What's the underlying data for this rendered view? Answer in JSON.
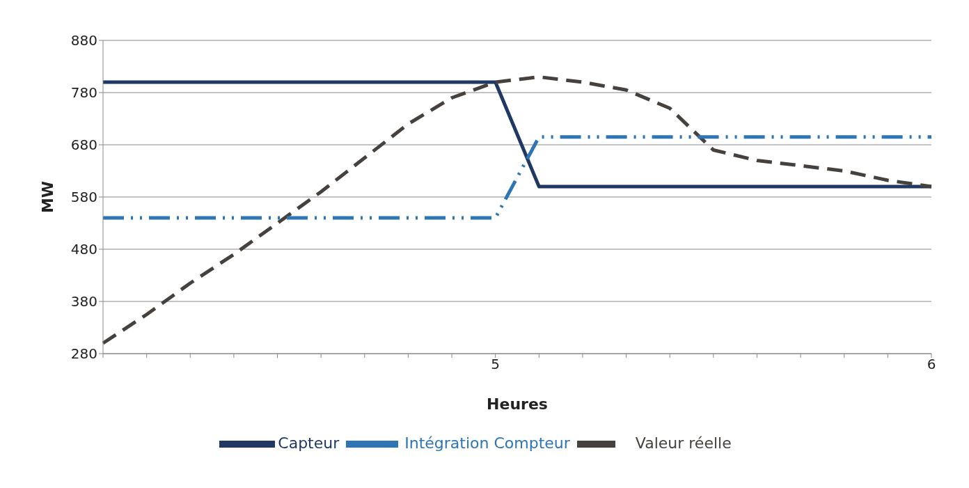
{
  "chart_data": {
    "type": "line",
    "xlabel": "Heures",
    "ylabel": "MW",
    "categories": [
      null,
      null,
      null,
      null,
      null,
      null,
      null,
      null,
      null,
      "5",
      null,
      null,
      null,
      null,
      null,
      null,
      null,
      null,
      null,
      "6"
    ],
    "series": [
      {
        "name": "Capteur",
        "color": "#1f3864",
        "line_style": "solid",
        "values": [
          800,
          800,
          800,
          800,
          800,
          800,
          800,
          800,
          800,
          800,
          600,
          600,
          600,
          600,
          600,
          600,
          600,
          600,
          600,
          600
        ]
      },
      {
        "name": "Valeur réelle",
        "color": "#46413d",
        "line_style": "dashed",
        "values": [
          300,
          355,
          415,
          470,
          530,
          590,
          655,
          720,
          770,
          800,
          810,
          800,
          785,
          750,
          670,
          650,
          640,
          630,
          612,
          600
        ]
      },
      {
        "name": "Intégration Compteur",
        "color": "#2e75b6",
        "line_style": "dotted",
        "values": [
          540,
          540,
          540,
          540,
          540,
          540,
          540,
          540,
          540,
          540,
          695,
          695,
          695,
          695,
          695,
          695,
          695,
          695,
          695,
          695
        ]
      }
    ],
    "ylim": [
      280,
      880
    ],
    "yticks": [
      280,
      380,
      480,
      580,
      680,
      780,
      880
    ],
    "grid": "y",
    "legend": "bottom",
    "marker": "none"
  }
}
